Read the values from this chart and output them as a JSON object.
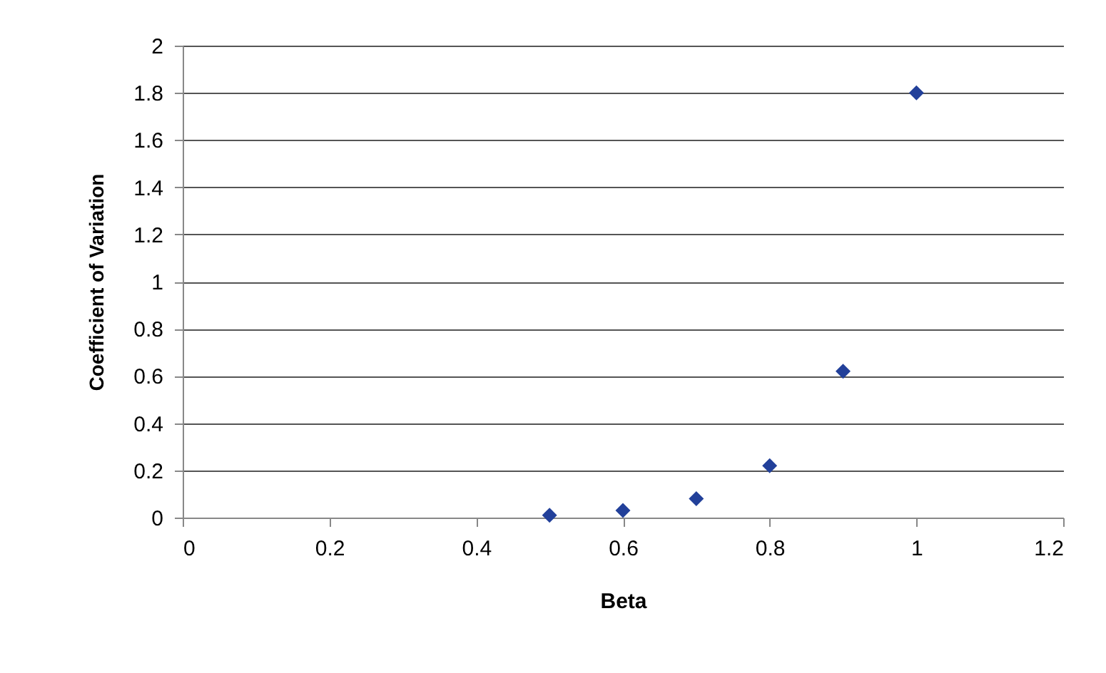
{
  "chart_data": {
    "type": "scatter",
    "xlabel": "Beta",
    "ylabel": "Coefficient of Variation",
    "x": [
      0.5,
      0.6,
      0.7,
      0.8,
      0.9,
      1.0
    ],
    "series": [
      {
        "color": "#22409a",
        "values": [
          0.01,
          0.03,
          0.08,
          0.22,
          0.62,
          1.8
        ]
      }
    ],
    "xlim": [
      0,
      1.2
    ],
    "xticks": [
      0,
      0.2,
      0.4,
      0.6,
      0.8,
      1,
      1.2
    ],
    "ylim": [
      0,
      2
    ],
    "yticks": [
      0,
      0.2,
      0.4,
      0.6,
      0.8,
      1,
      1.2,
      1.4,
      1.6,
      1.8,
      2
    ],
    "grid": "y",
    "marker": "diamond",
    "legend": false
  }
}
